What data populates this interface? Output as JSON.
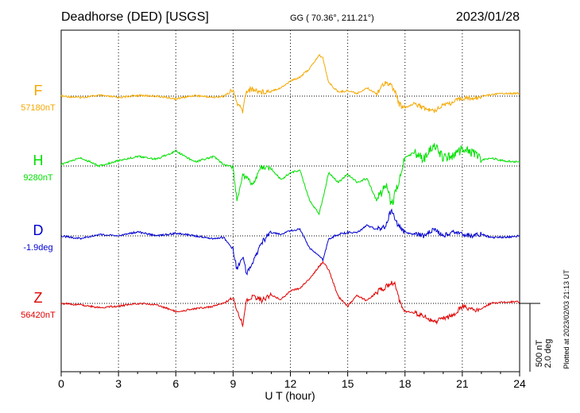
{
  "header": {
    "station": "Deadhorse (DED)  [USGS]",
    "coords": "GG ( 70.36°, 211.21°)",
    "date": "2023/01/28"
  },
  "plotted_note": "Plotted at 2023/02/03 21:13 UT",
  "scale_label_1": "500 nT",
  "scale_label_2": "2.0 deg",
  "chart_data": {
    "type": "line",
    "title": "Deadhorse (DED)  [USGS]",
    "xlabel": "U T (hour)",
    "ylabel": "",
    "xlim": [
      0,
      24
    ],
    "x_ticks": [
      "0",
      "3",
      "6",
      "9",
      "12",
      "15",
      "18",
      "21",
      "24"
    ],
    "grid": true,
    "scale": {
      "nT": 500,
      "deg": 2.0
    },
    "x_hours": [
      0,
      1,
      2,
      3,
      4,
      5,
      6,
      7,
      8,
      8.5,
      9,
      9.2,
      9.5,
      9.7,
      10,
      10.5,
      11,
      11.5,
      12,
      12.5,
      13,
      13.5,
      13.7,
      14,
      14.5,
      15,
      15.5,
      16,
      16.5,
      17,
      17.3,
      17.5,
      17.7,
      18,
      18.5,
      19,
      19.5,
      20,
      20.5,
      21,
      21.5,
      22,
      22.5,
      23,
      24
    ],
    "series": [
      {
        "name": "F",
        "baseline_label": "57180nT",
        "color": "#f5a800",
        "values_nT": [
          0,
          -10,
          5,
          -10,
          5,
          0,
          -20,
          5,
          -10,
          0,
          40,
          -50,
          -110,
          40,
          50,
          30,
          40,
          60,
          110,
          140,
          200,
          300,
          280,
          100,
          30,
          40,
          20,
          60,
          20,
          110,
          70,
          30,
          -60,
          -90,
          -50,
          -90,
          -110,
          -60,
          -50,
          -10,
          -20,
          0,
          10,
          20,
          20
        ]
      },
      {
        "name": "H",
        "baseline_label": "9280nT",
        "color": "#00e000",
        "values_nT": [
          10,
          60,
          0,
          40,
          70,
          50,
          110,
          30,
          70,
          10,
          -10,
          -250,
          -80,
          -70,
          -140,
          -10,
          -20,
          -100,
          -50,
          -30,
          -250,
          -350,
          -240,
          -50,
          -120,
          -60,
          -120,
          -90,
          -250,
          -140,
          -290,
          -200,
          -110,
          60,
          100,
          50,
          160,
          60,
          80,
          120,
          100,
          40,
          60,
          40,
          30
        ]
      },
      {
        "name": "D",
        "baseline_label": "-1.9deg",
        "color": "#0000d0",
        "values_deg": [
          0,
          -0.08,
          0.04,
          0.0,
          0.12,
          0.0,
          0.08,
          0.0,
          -0.08,
          -0.04,
          -0.4,
          -1.0,
          -0.6,
          -1.1,
          -0.8,
          -0.2,
          0.1,
          0.05,
          0.15,
          0.2,
          -0.35,
          -0.6,
          -0.7,
          -0.1,
          0.05,
          0.1,
          0.1,
          0.3,
          0.2,
          0.3,
          0.8,
          0.4,
          0.3,
          0.1,
          0.05,
          0.0,
          0.2,
          0.0,
          0.1,
          0.05,
          0.0,
          0.05,
          -0.05,
          -0.05,
          0.0
        ]
      },
      {
        "name": "Z",
        "baseline_label": "56420nT",
        "color": "#e00000",
        "values_nT": [
          0,
          -10,
          -30,
          -20,
          0,
          -10,
          -60,
          -40,
          -20,
          0,
          40,
          -40,
          -160,
          30,
          50,
          20,
          60,
          30,
          90,
          110,
          180,
          270,
          300,
          250,
          50,
          -20,
          60,
          20,
          80,
          120,
          160,
          130,
          20,
          -60,
          -70,
          -90,
          -140,
          -110,
          -90,
          -20,
          -50,
          -40,
          0,
          10,
          10
        ]
      }
    ]
  }
}
